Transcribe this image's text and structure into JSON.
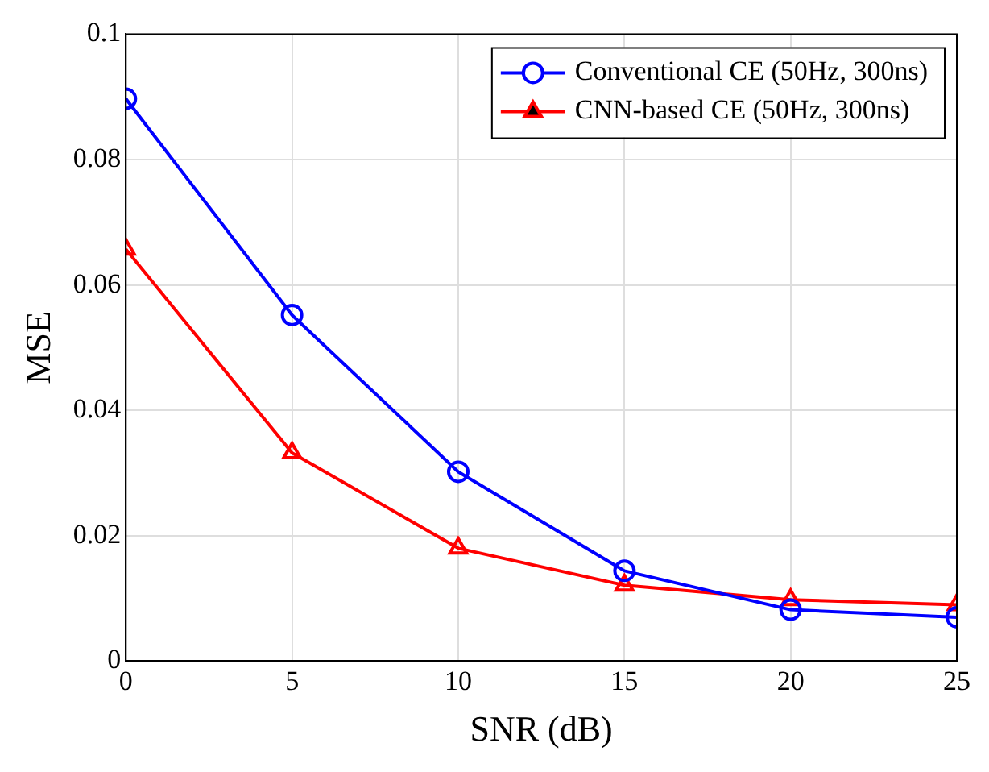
{
  "chart_data": {
    "type": "line",
    "xlabel": "SNR (dB)",
    "ylabel": "MSE",
    "x": [
      0,
      5,
      10,
      15,
      20,
      25
    ],
    "series": [
      {
        "name": "Conventional CE (50Hz, 300ns)",
        "color": "#0000ff",
        "marker": "circle",
        "values": [
          0.0897,
          0.0552,
          0.0302,
          0.0144,
          0.0082,
          0.007
        ]
      },
      {
        "name": "CNN-based CE (50Hz, 300ns)",
        "color": "#ff0000",
        "marker": "triangle",
        "values": [
          0.0657,
          0.0332,
          0.018,
          0.0121,
          0.0098,
          0.009
        ]
      }
    ],
    "xlim": [
      0,
      25
    ],
    "xticks": [
      0,
      5,
      10,
      15,
      20,
      25
    ],
    "ylim": [
      0,
      0.1
    ],
    "yticks": [
      0,
      0.02,
      0.04,
      0.06,
      0.08,
      0.1
    ],
    "grid": true,
    "legend": "top right",
    "line_style": "solid"
  }
}
